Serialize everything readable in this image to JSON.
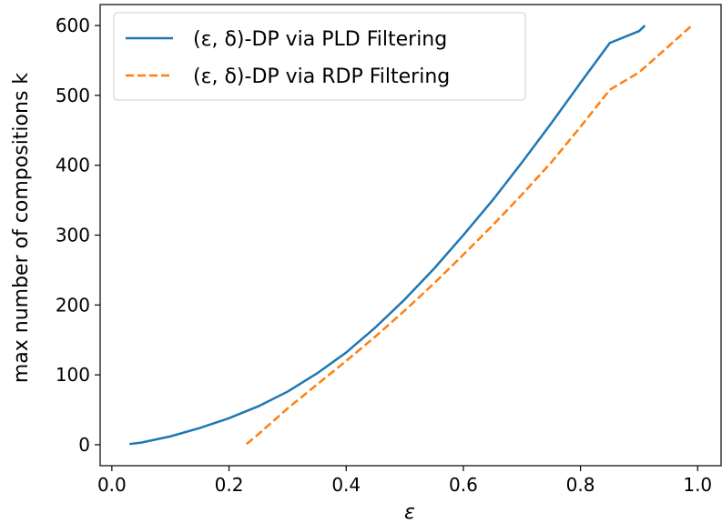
{
  "chart_data": {
    "type": "line",
    "xlabel": "ε",
    "ylabel": "max number of compositions k",
    "xlim": [
      -0.02,
      1.04
    ],
    "ylim": [
      -30,
      630
    ],
    "xticks": [
      0.0,
      0.2,
      0.4,
      0.6,
      0.8,
      1.0
    ],
    "xtick_labels": [
      "0.0",
      "0.2",
      "0.4",
      "0.6",
      "0.8",
      "1.0"
    ],
    "yticks": [
      0,
      100,
      200,
      300,
      400,
      500,
      600
    ],
    "ytick_labels": [
      "0",
      "100",
      "200",
      "300",
      "400",
      "500",
      "600"
    ],
    "grid": false,
    "legend_position": "top-left",
    "series": [
      {
        "name": "(ε, δ)-DP via PLD Filtering",
        "color": "#1f77b4",
        "dash": "solid",
        "x": [
          0.03,
          0.05,
          0.1,
          0.15,
          0.2,
          0.25,
          0.3,
          0.35,
          0.4,
          0.45,
          0.5,
          0.55,
          0.6,
          0.65,
          0.7,
          0.75,
          0.8,
          0.85,
          0.9,
          0.91
        ],
        "y": [
          1,
          3,
          12,
          24,
          38,
          55,
          76,
          102,
          132,
          168,
          208,
          252,
          300,
          350,
          404,
          460,
          518,
          575,
          592,
          600
        ]
      },
      {
        "name": "(ε, δ)-DP via RDP Filtering",
        "color": "#ff7f0e",
        "dash": "dashed",
        "x": [
          0.23,
          0.25,
          0.3,
          0.35,
          0.4,
          0.45,
          0.5,
          0.55,
          0.6,
          0.65,
          0.7,
          0.75,
          0.8,
          0.85,
          0.9,
          0.95,
          0.99
        ],
        "y": [
          1,
          15,
          52,
          86,
          120,
          155,
          192,
          231,
          272,
          314,
          358,
          404,
          455,
          508,
          533,
          570,
          600
        ]
      }
    ]
  }
}
